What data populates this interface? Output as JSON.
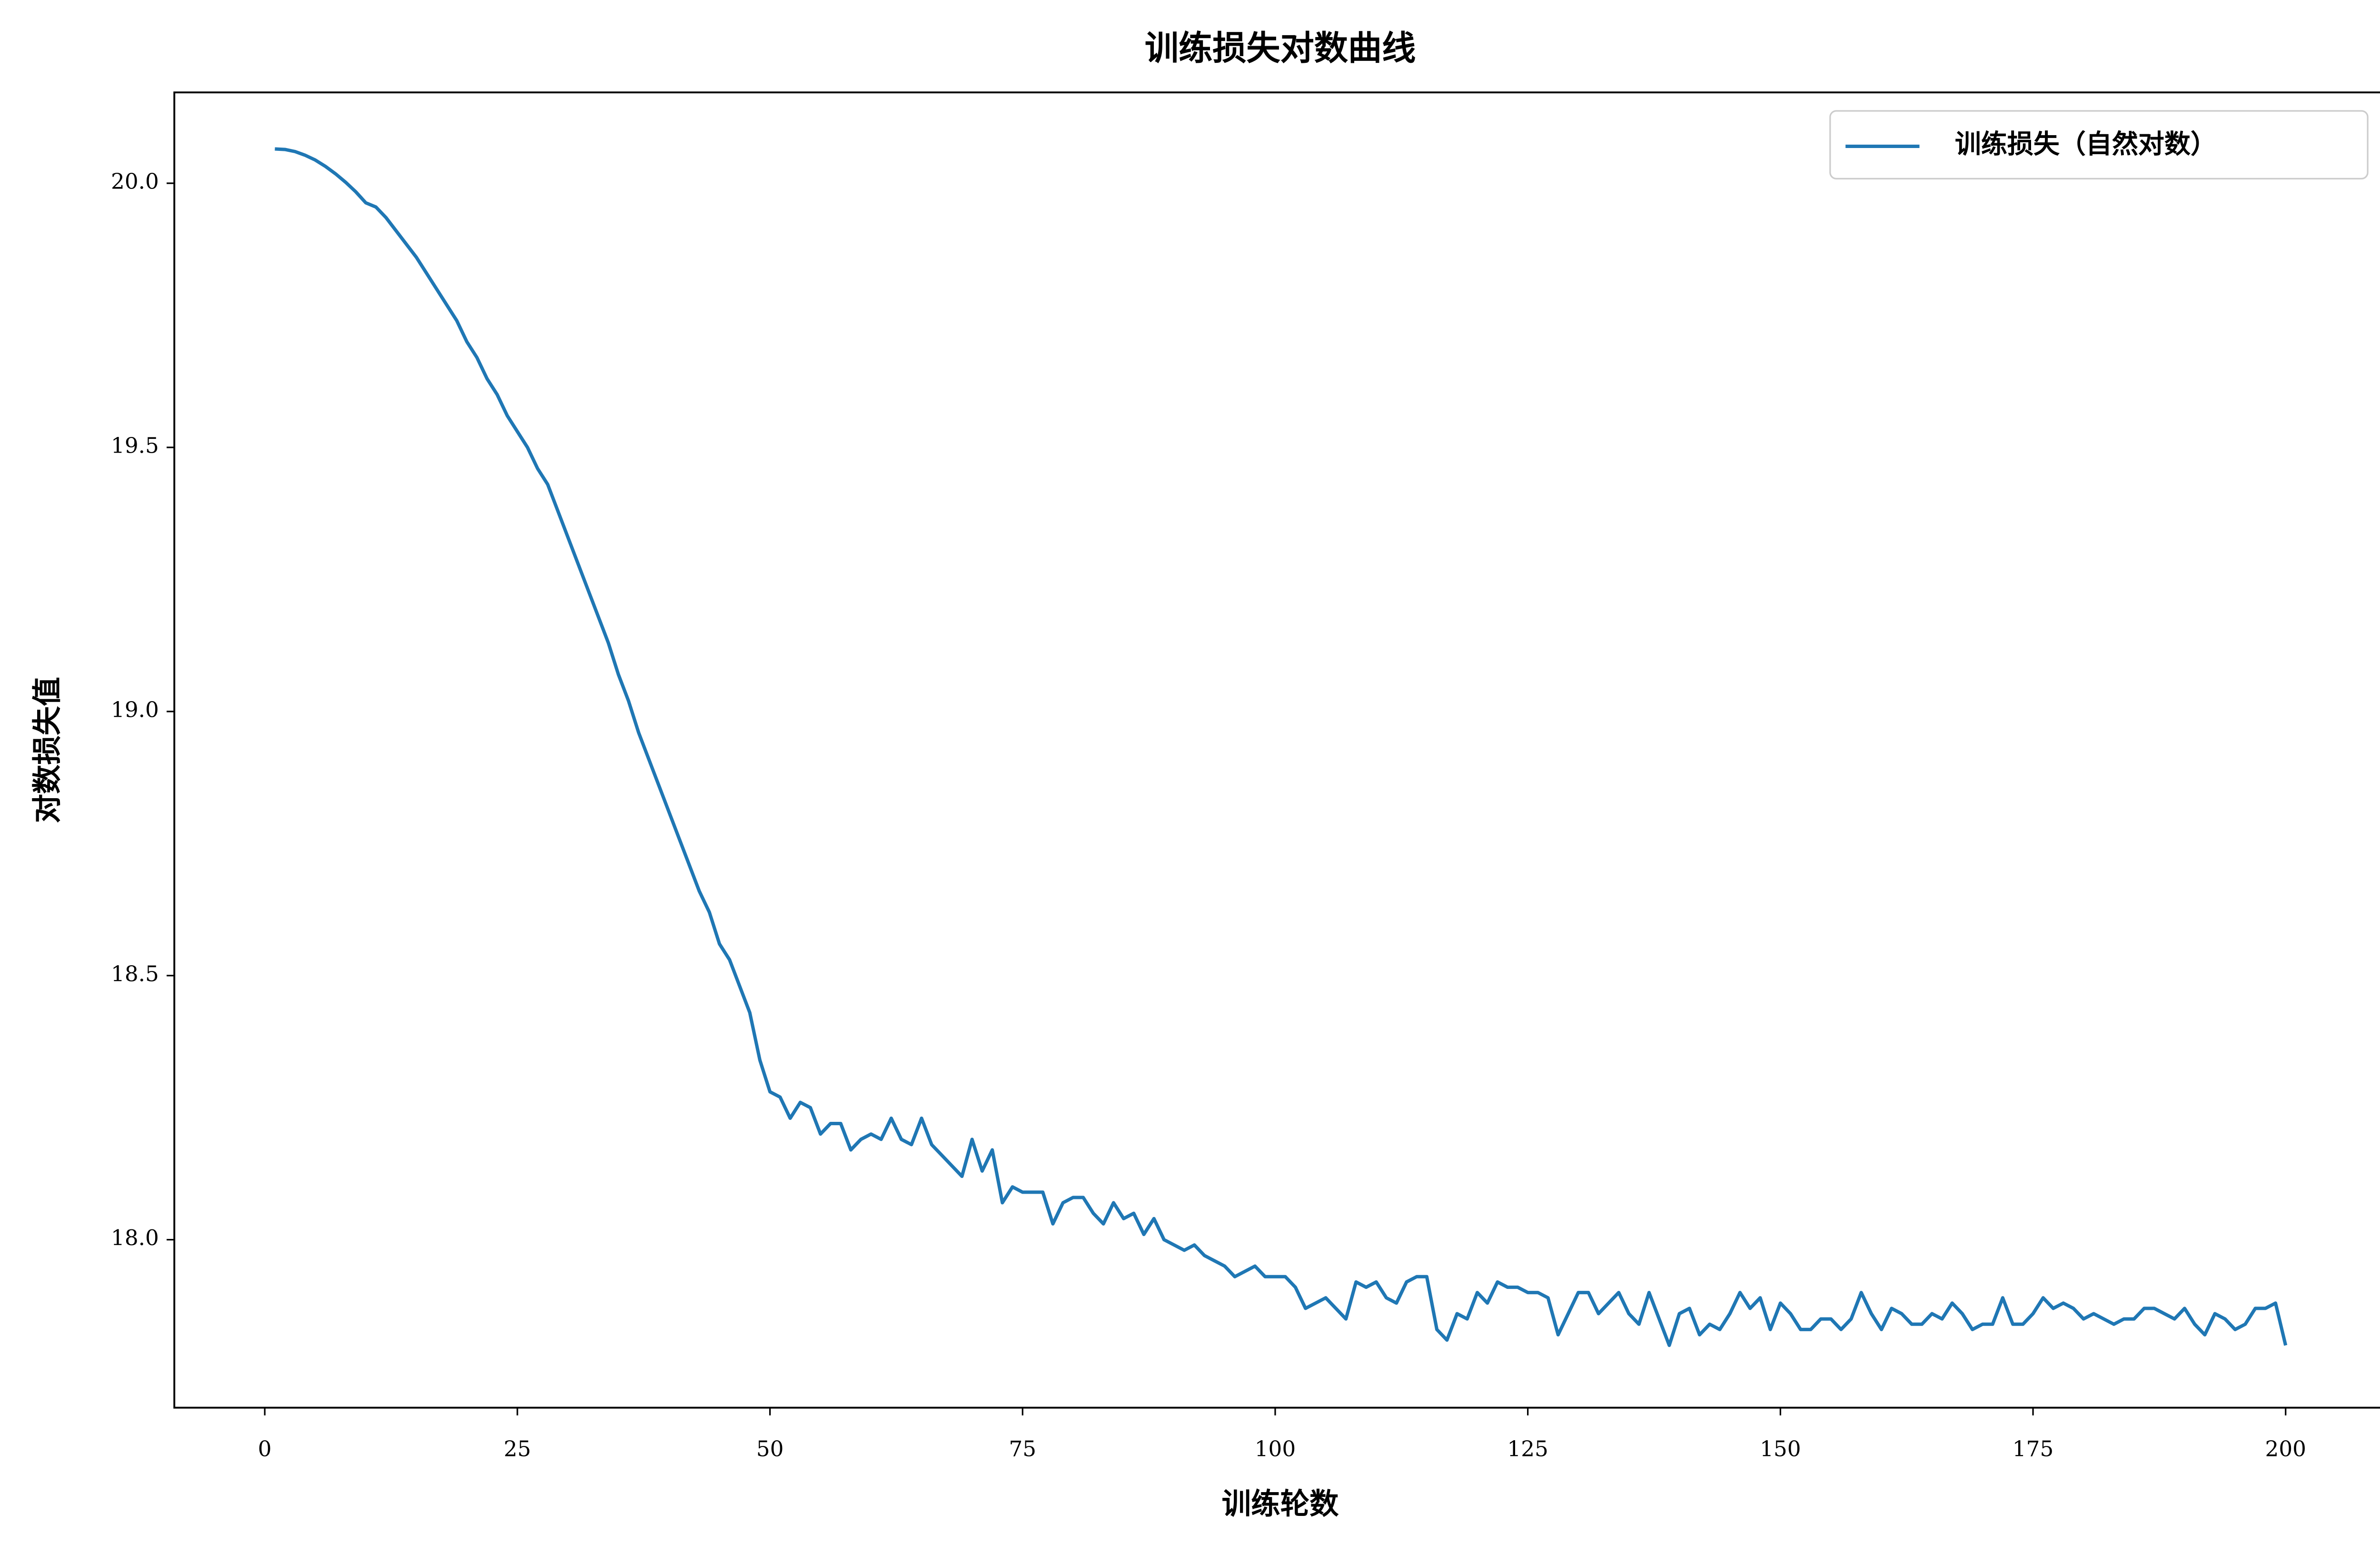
{
  "chart_data": {
    "type": "line",
    "title": "训练损失对数曲线",
    "x_label": "训练轮数",
    "y_label": "对数损失值",
    "x": [
      1,
      2,
      3,
      4,
      5,
      6,
      7,
      8,
      9,
      10,
      11,
      12,
      13,
      14,
      15,
      16,
      17,
      18,
      19,
      20,
      21,
      22,
      23,
      24,
      25,
      26,
      27,
      28,
      29,
      30,
      31,
      32,
      33,
      34,
      35,
      36,
      37,
      38,
      39,
      40,
      41,
      42,
      43,
      44,
      45,
      46,
      47,
      48,
      49,
      50,
      51,
      52,
      53,
      54,
      55,
      56,
      57,
      58,
      59,
      60,
      61,
      62,
      63,
      64,
      65,
      66,
      67,
      68,
      69,
      70,
      71,
      72,
      73,
      74,
      75,
      76,
      77,
      78,
      79,
      80,
      81,
      82,
      83,
      84,
      85,
      86,
      87,
      88,
      89,
      90,
      91,
      92,
      93,
      94,
      95,
      96,
      97,
      98,
      99,
      100,
      101,
      102,
      103,
      104,
      105,
      106,
      107,
      108,
      109,
      110,
      111,
      112,
      113,
      114,
      115,
      116,
      117,
      118,
      119,
      120,
      121,
      122,
      123,
      124,
      125,
      126,
      127,
      128,
      129,
      130,
      131,
      132,
      133,
      134,
      135,
      136,
      137,
      138,
      139,
      140,
      141,
      142,
      143,
      144,
      145,
      146,
      147,
      148,
      149,
      150,
      151,
      152,
      153,
      154,
      155,
      156,
      157,
      158,
      159,
      160,
      161,
      162,
      163,
      164,
      165,
      166,
      167,
      168,
      169,
      170,
      171,
      172,
      173,
      174,
      175,
      176,
      177,
      178,
      179,
      180,
      181,
      182,
      183,
      184,
      185,
      186,
      187,
      188,
      189,
      190,
      191,
      192,
      193,
      194,
      195,
      196,
      197,
      198,
      199,
      200
    ],
    "series": [
      {
        "name": "训练损失（自然对数）",
        "color": "#1f77b4",
        "values": [
          20.065,
          20.064,
          20.06,
          20.053,
          20.044,
          20.032,
          20.018,
          20.002,
          19.984,
          19.963,
          19.955,
          19.935,
          19.91,
          19.885,
          19.86,
          19.83,
          19.8,
          19.77,
          19.74,
          19.7,
          19.67,
          19.63,
          19.6,
          19.56,
          19.53,
          19.5,
          19.46,
          19.43,
          19.38,
          19.33,
          19.28,
          19.23,
          19.18,
          19.13,
          19.07,
          19.02,
          18.96,
          18.91,
          18.86,
          18.81,
          18.76,
          18.71,
          18.66,
          18.62,
          18.56,
          18.53,
          18.48,
          18.43,
          18.34,
          18.28,
          18.27,
          18.23,
          18.26,
          18.25,
          18.2,
          18.22,
          18.22,
          18.17,
          18.19,
          18.2,
          18.19,
          18.23,
          18.19,
          18.18,
          18.23,
          18.18,
          18.16,
          18.14,
          18.12,
          18.19,
          18.13,
          18.17,
          18.07,
          18.1,
          18.09,
          18.09,
          18.09,
          18.03,
          18.07,
          18.08,
          18.08,
          18.05,
          18.03,
          18.07,
          18.04,
          18.05,
          18.01,
          18.04,
          18,
          17.99,
          17.98,
          17.99,
          17.97,
          17.96,
          17.95,
          17.93,
          17.94,
          17.95,
          17.93,
          17.93,
          17.93,
          17.91,
          17.87,
          17.88,
          17.89,
          17.87,
          17.85,
          17.92,
          17.91,
          17.92,
          17.89,
          17.88,
          17.92,
          17.93,
          17.93,
          17.83,
          17.81,
          17.86,
          17.85,
          17.9,
          17.88,
          17.92,
          17.91,
          17.91,
          17.9,
          17.9,
          17.89,
          17.82,
          17.86,
          17.9,
          17.9,
          17.86,
          17.88,
          17.9,
          17.86,
          17.84,
          17.9,
          17.85,
          17.8,
          17.86,
          17.87,
          17.82,
          17.84,
          17.83,
          17.86,
          17.9,
          17.87,
          17.89,
          17.83,
          17.88,
          17.86,
          17.83,
          17.83,
          17.85,
          17.85,
          17.83,
          17.85,
          17.9,
          17.86,
          17.83,
          17.87,
          17.86,
          17.84,
          17.84,
          17.86,
          17.85,
          17.88,
          17.86,
          17.83,
          17.84,
          17.84,
          17.89,
          17.84,
          17.84,
          17.86,
          17.89,
          17.87,
          17.88,
          17.87,
          17.85,
          17.86,
          17.85,
          17.84,
          17.85,
          17.85,
          17.87,
          17.87,
          17.86,
          17.85,
          17.87,
          17.84,
          17.82,
          17.86,
          17.85,
          17.83,
          17.84,
          17.87,
          17.87,
          17.88,
          17.8
        ]
      }
    ],
    "xlim": [
      -8.95,
      209.95
    ],
    "xticks": [
      0,
      25,
      50,
      75,
      100,
      125,
      150,
      175,
      200
    ],
    "ylim": [
      17.682,
      20.172
    ],
    "yticks": [
      {
        "value": 18,
        "label": "18.0"
      },
      18.5,
      {
        "value": 19,
        "label": "19.0"
      },
      19.5,
      {
        "value": 20,
        "label": "20.0"
      }
    ],
    "grid": false,
    "legend": "upper right"
  }
}
